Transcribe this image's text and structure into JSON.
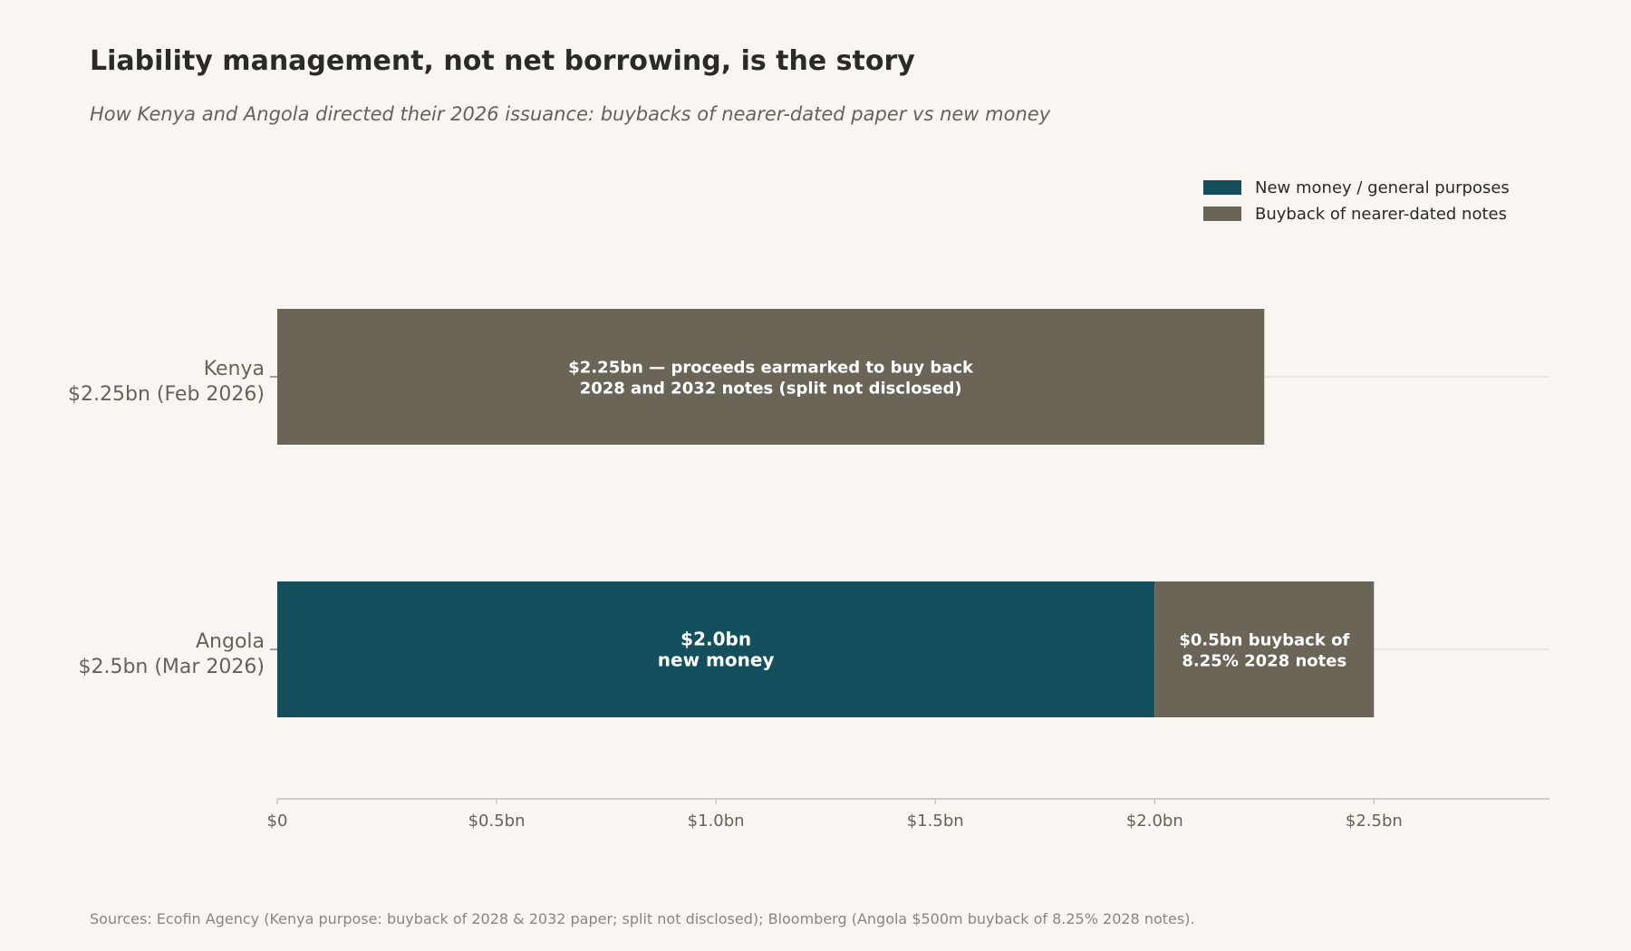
{
  "chart_data": {
    "type": "bar",
    "orientation": "horizontal",
    "stacked": true,
    "title": "Liability management, not net borrowing, is the story",
    "subtitle": "How Kenya and Angola directed their 2026 issuance: buybacks of nearer-dated paper vs new money",
    "categories": [
      [
        "Kenya",
        "$2.25bn (Feb 2026)"
      ],
      [
        "Angola",
        "$2.5bn (Mar 2026)"
      ]
    ],
    "series": [
      {
        "name": "New money / general purposes",
        "color": "#144f5e",
        "values": [
          0,
          2.0
        ],
        "labels": [
          [],
          [
            "$2.0bn",
            "new money"
          ]
        ]
      },
      {
        "name": "Buyback of nearer-dated notes",
        "color": "#6b6558",
        "values": [
          2.25,
          0.5
        ],
        "labels": [
          [
            "$2.25bn — proceeds earmarked to buy back",
            "2028 and 2032 notes (split not disclosed)"
          ],
          [
            "$0.5bn buyback of",
            "8.25% 2028 notes"
          ]
        ]
      }
    ],
    "xlim": [
      0,
      2.9
    ],
    "xticks": [
      {
        "value": 0,
        "label": "$0"
      },
      {
        "value": 0.5,
        "label": "$0.5bn"
      },
      {
        "value": 1.0,
        "label": "$1.0bn"
      },
      {
        "value": 1.5,
        "label": "$1.5bn"
      },
      {
        "value": 2.0,
        "label": "$2.0bn"
      },
      {
        "value": 2.5,
        "label": "$2.5bn"
      }
    ],
    "grid": "horizontal category lines",
    "legend_position": "top-right",
    "source": "Sources: Ecofin Agency (Kenya purpose: buyback of 2028 & 2032 paper; split not disclosed); Bloomberg (Angola $500m buyback of 8.25% 2028 notes)."
  }
}
